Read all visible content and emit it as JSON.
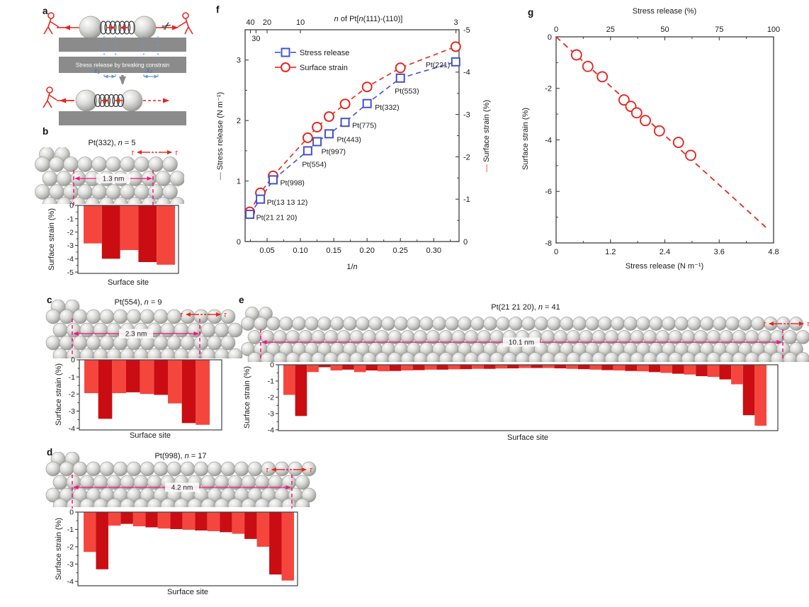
{
  "labels": {
    "a": "a",
    "b": "b",
    "c": "c",
    "d": "d",
    "e": "e",
    "f": "f",
    "g": "g"
  },
  "panel_a": {
    "banner": "Stress release by breaking constrain",
    "eps1": "ε₁",
    "eps2": "ε₂"
  },
  "panels": {
    "b": {
      "material": "Pt(332),",
      "nvar": "n",
      "neq": " = 5",
      "dim": "1.3 nm",
      "tau": "τ",
      "xlabel": "Surface site",
      "ylabel": "Surface strain (%)"
    },
    "c": {
      "material": "Pt(554),",
      "nvar": "n",
      "neq": " = 9",
      "dim": "2.3 nm",
      "tau": "τ",
      "xlabel": "Surface site",
      "ylabel": "Surface strain (%)"
    },
    "d": {
      "material": "Pt(998),",
      "nvar": "n",
      "neq": " = 17",
      "dim": "4.2 nm",
      "tau": "τ",
      "xlabel": "Surface site",
      "ylabel": "Surface strain (%)"
    },
    "e": {
      "material": "Pt(21 21 20),",
      "nvar": "n",
      "neq": " = 41",
      "dim": "10.1 nm",
      "tau": "τ",
      "xlabel": "Surface site",
      "ylabel": "Surface strain (%)"
    }
  },
  "panel_f": {
    "top1": "n",
    "top2": " of Pt[",
    "top3": "n",
    "top4": "(111)-(110)]",
    "xlabel1": "1/",
    "xlabel2": "n",
    "ylabel_left": "Stress release (N m⁻¹)",
    "ylabel_right": "Surface strain (%)",
    "legend_stress": "Stress release",
    "legend_strain": "Surface strain"
  },
  "panel_g": {
    "top": "Stress release (%)",
    "xlabel": "Stress release (N m⁻¹)",
    "ylabel": "Surface strain (%)"
  },
  "colors": {
    "red": "#e8251f",
    "bar_light": "#f5463e",
    "bar_dark": "#c90d12",
    "blue": "#4353c9",
    "pink": "#ed187e",
    "gray_bar": "#8b8b8b",
    "axis": "#3f3f3f",
    "blue_dash": "#6b9bd2"
  },
  "chart_data": [
    {
      "id": "b",
      "type": "bar",
      "title": "Pt(332), n = 5",
      "xlabel": "Surface site",
      "ylabel": "Surface strain (%)",
      "ylim": [
        -5.1,
        0
      ],
      "yticks": [
        0,
        -1,
        -2,
        -3,
        -4,
        -5
      ],
      "values": [
        -2.85,
        -4.0,
        -3.35,
        -4.25,
        -4.45
      ]
    },
    {
      "id": "c",
      "type": "bar",
      "title": "Pt(554), n = 9",
      "xlabel": "Surface site",
      "ylabel": "Surface strain (%)",
      "ylim": [
        -4.1,
        0
      ],
      "yticks": [
        0,
        -1,
        -2,
        -3,
        -4
      ],
      "values": [
        -1.95,
        -3.45,
        -1.95,
        -1.9,
        -2.0,
        -2.05,
        -2.55,
        -3.7,
        -3.8
      ]
    },
    {
      "id": "d",
      "type": "bar",
      "title": "Pt(998), n = 17",
      "xlabel": "Surface site",
      "ylabel": "Surface strain (%)",
      "ylim": [
        -4.25,
        0
      ],
      "yticks": [
        0,
        -1,
        -2,
        -3,
        -4
      ],
      "values": [
        -2.3,
        -3.3,
        -0.78,
        -0.68,
        -0.82,
        -0.88,
        -0.95,
        -0.98,
        -1.02,
        -1.06,
        -1.1,
        -1.16,
        -1.25,
        -1.55,
        -2.0,
        -3.6,
        -3.95
      ]
    },
    {
      "id": "e",
      "type": "bar",
      "title": "Pt(21 21 20), n = 41",
      "xlabel": "Surface site",
      "ylabel": "Surface strain (%)",
      "ylim": [
        -4.05,
        0
      ],
      "yticks": [
        0,
        -1,
        -2,
        -3,
        -4
      ],
      "values": [
        -1.85,
        -3.15,
        -0.45,
        -0.15,
        -0.35,
        -0.3,
        -0.45,
        -0.35,
        -0.4,
        -0.38,
        -0.35,
        -0.33,
        -0.3,
        -0.3,
        -0.28,
        -0.27,
        -0.25,
        -0.25,
        -0.23,
        -0.22,
        -0.2,
        -0.2,
        -0.2,
        -0.22,
        -0.25,
        -0.27,
        -0.3,
        -0.33,
        -0.35,
        -0.38,
        -0.4,
        -0.45,
        -0.5,
        -0.55,
        -0.6,
        -0.7,
        -0.75,
        -0.9,
        -1.2,
        -3.1,
        -3.75
      ]
    },
    {
      "id": "f",
      "type": "scatter",
      "title": "n of Pt[n(111)-(110)]",
      "xlabel": "1/n",
      "ylabel_left": "Stress release (N m⁻¹)",
      "ylabel_right": "Surface strain (%)",
      "xlim": [
        0.017,
        0.338
      ],
      "left_lim": [
        0,
        3.5
      ],
      "right_lim": [
        0,
        -5
      ],
      "top_ticks": [
        "40",
        "30",
        "20",
        "10",
        "3"
      ],
      "x_ticks": [
        "0.05",
        "0.10",
        "0.15",
        "0.20",
        "0.25",
        "0.30"
      ],
      "left_ticks": [
        "0",
        "1",
        "2",
        "3"
      ],
      "right_ticks": [
        "0",
        "-1",
        "-2",
        "-3",
        "-4",
        "-5"
      ],
      "legend": [
        "Stress release",
        "Surface strain"
      ],
      "points": [
        {
          "label": "Pt(21 21 20)",
          "n": 41,
          "inv_n": 0.024,
          "stress": 0.45,
          "strain": -0.7
        },
        {
          "label": "Pt(13 13 12)",
          "n": 25,
          "inv_n": 0.04,
          "stress": 0.7,
          "strain": -1.15
        },
        {
          "label": "Pt(998)",
          "n": 17,
          "inv_n": 0.059,
          "stress": 1.02,
          "strain": -1.55
        },
        {
          "label": "Pt(554)",
          "n": 9,
          "inv_n": 0.111,
          "stress": 1.5,
          "strain": -2.45
        },
        {
          "label": "Pt(997)",
          "n": 8,
          "inv_n": 0.125,
          "stress": 1.65,
          "strain": -2.7
        },
        {
          "label": "Pt(443)",
          "n": 7,
          "inv_n": 0.143,
          "stress": 1.78,
          "strain": -2.95
        },
        {
          "label": "Pt(775)",
          "n": 6,
          "inv_n": 0.167,
          "stress": 1.97,
          "strain": -3.25
        },
        {
          "label": "Pt(332)",
          "n": 5,
          "inv_n": 0.2,
          "stress": 2.28,
          "strain": -3.65
        },
        {
          "label": "Pt(553)",
          "n": 4,
          "inv_n": 0.25,
          "stress": 2.7,
          "strain": -4.1
        },
        {
          "label": "Pt(221)",
          "n": 3,
          "inv_n": 0.333,
          "stress": 2.97,
          "strain": -4.6
        }
      ]
    },
    {
      "id": "g",
      "type": "scatter",
      "top_label": "Stress release (%)",
      "xlabel": "Stress release (N m⁻¹)",
      "ylabel": "Surface strain (%)",
      "xlim": [
        0,
        4.8
      ],
      "ylim": [
        0,
        -8
      ],
      "top_ticks": [
        "0",
        "25",
        "50",
        "75",
        "100"
      ],
      "x_ticks": [
        "0",
        "1.2",
        "2.4",
        "3.6",
        "4.8"
      ],
      "y_ticks": [
        "0",
        "-2",
        "-4",
        "-6",
        "-8"
      ],
      "fit_line": {
        "from": [
          0,
          0
        ],
        "to": [
          4.66,
          -7.44
        ]
      },
      "points": [
        [
          0.45,
          -0.7
        ],
        [
          0.7,
          -1.15
        ],
        [
          1.02,
          -1.55
        ],
        [
          1.5,
          -2.45
        ],
        [
          1.65,
          -2.7
        ],
        [
          1.78,
          -2.95
        ],
        [
          1.97,
          -3.25
        ],
        [
          2.28,
          -3.65
        ],
        [
          2.7,
          -4.1
        ],
        [
          2.97,
          -4.6
        ]
      ]
    }
  ]
}
